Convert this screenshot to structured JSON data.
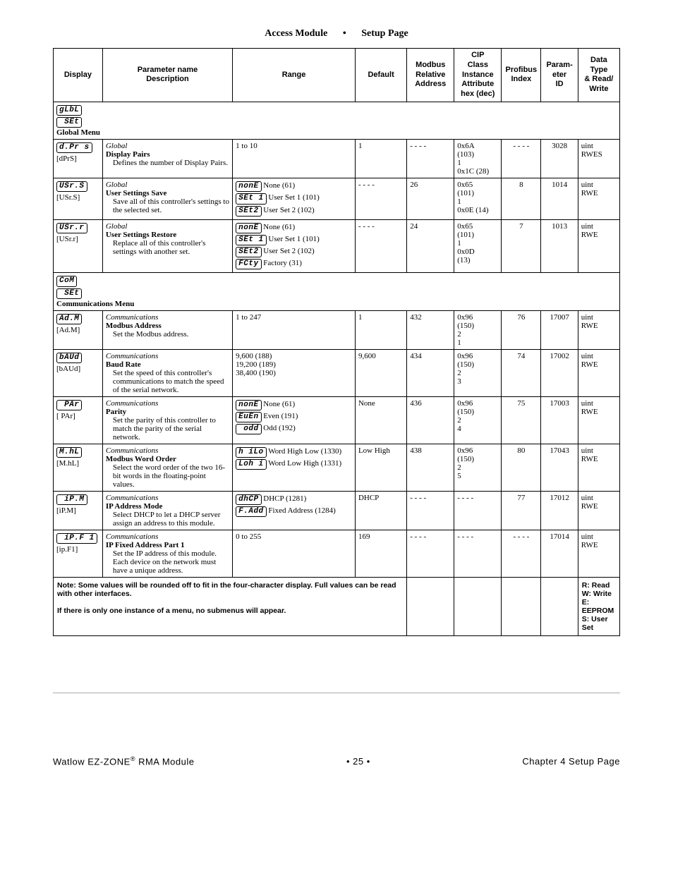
{
  "header": {
    "left": "Access Module",
    "right": "Setup Page"
  },
  "columns": {
    "display": "Display",
    "param": "Parameter name\nDescription",
    "range": "Range",
    "default": "Default",
    "modbus": "Modbus\nRelative\nAddress",
    "cip": "CIP\nClass\nInstance\nAttribute\nhex (dec)",
    "profibus": "Profibus\nIndex",
    "paramid": "Param-\neter\nID",
    "type": "Data\nType\n& Read/\nWrite"
  },
  "menus": {
    "global": {
      "seg1": "gLbL",
      "seg2": " SEt",
      "title": "Global Menu"
    },
    "comms": {
      "seg1": "CoM",
      "seg2": " SEt",
      "title": "Communications Menu"
    }
  },
  "rows": {
    "dprs": {
      "seg": "d.Pr s",
      "plain": "[dPrS]",
      "ctx": "Global",
      "name": "Display Pairs",
      "desc": "Defines the number of Display Pairs.",
      "range": "1 to 10",
      "default": "1",
      "modbus": "- - - -",
      "cip": "0x6A\n(103)\n1\n0x1C (28)",
      "profibus": "- - - -",
      "paramid": "3028",
      "type": "uint\nRWES"
    },
    "usrs": {
      "seg": "USr.S",
      "plain": "[USr.S]",
      "ctx": "Global",
      "name": "User Settings Save",
      "desc": "Save all of this controller's settings to the selected set.",
      "rangeOpts": [
        {
          "seg": "nonE",
          "txt": " None (61)"
        },
        {
          "seg": "SEt 1",
          "txt": " User Set 1 (101)"
        },
        {
          "seg": "SEt2",
          "txt": " User Set 2 (102)"
        }
      ],
      "default": "- - - -",
      "modbus": "26",
      "cip": "0x65\n(101)\n1\n0x0E (14)",
      "profibus": "8",
      "paramid": "1014",
      "type": "uint\nRWE"
    },
    "usrr": {
      "seg": "USr.r",
      "plain": "[USr.r]",
      "ctx": "Global",
      "name": "User Settings Restore",
      "desc": "Replace all of this controller's settings with another set.",
      "rangeOpts": [
        {
          "seg": "nonE",
          "txt": " None (61)"
        },
        {
          "seg": "SEt 1",
          "txt": " User Set 1 (101)"
        },
        {
          "seg": "SEt2",
          "txt": " User Set 2 (102)"
        },
        {
          "seg": "FCty",
          "txt": " Factory (31)"
        }
      ],
      "default": "- - - -",
      "modbus": "24",
      "cip": "0x65\n(101)\n1\n0x0D\n(13)",
      "profibus": "7",
      "paramid": "1013",
      "type": "uint\nRWE"
    },
    "adm": {
      "seg": "Ad.M",
      "plain": "[Ad.M]",
      "ctx": "Communications",
      "name": "Modbus Address",
      "desc": "Set the Modbus address.",
      "range": "1 to 247",
      "default": "1",
      "modbus": "432",
      "cip": "0x96\n(150)\n2\n1",
      "profibus": "76",
      "paramid": "17007",
      "type": "uint\nRWE"
    },
    "baud": {
      "seg": "bAUd",
      "plain": "[bAUd]",
      "ctx": "Communications",
      "name": "Baud Rate",
      "desc": "Set the speed of this controller's communications to match the speed of the serial network.",
      "range": "9,600 (188)\n19,200 (189)\n38,400 (190)",
      "default": "9,600",
      "modbus": "434",
      "cip": "0x96\n(150)\n2\n3",
      "profibus": "74",
      "paramid": "17002",
      "type": "uint\nRWE"
    },
    "par": {
      "seg": " PAr",
      "plain": "[ PAr]",
      "ctx": "Communications",
      "name": "Parity",
      "desc": "Set the parity of this controller to match the parity of the serial network.",
      "rangeOpts": [
        {
          "seg": "nonE",
          "txt": " None (61)"
        },
        {
          "seg": "EuEn",
          "txt": " Even (191)"
        },
        {
          "seg": " odd",
          "txt": " Odd (192)"
        }
      ],
      "default": "None",
      "modbus": "436",
      "cip": "0x96\n(150)\n2\n4",
      "profibus": "75",
      "paramid": "17003",
      "type": "uint\nRWE"
    },
    "mhl": {
      "seg": "M.hL",
      "plain": "[M.hL]",
      "ctx": "Communications",
      "name": "Modbus Word Order",
      "desc": "Select the word order of the two 16-bit words in the floating-point values.",
      "rangeOpts": [
        {
          "seg": "h iLo",
          "txt": " Word High Low (1330)"
        },
        {
          "seg": "Loh i",
          "txt": " Word Low High (1331)"
        }
      ],
      "default": "Low High",
      "modbus": "438",
      "cip": "0x96\n(150)\n2\n5",
      "profibus": "80",
      "paramid": "17043",
      "type": "uint\nRWE"
    },
    "ipm": {
      "seg": " iP.M",
      "plain": "[iP.M]",
      "ctx": "Communications",
      "name": "IP Address Mode",
      "desc": "Select DHCP to let a DHCP server assign an address to this module.",
      "rangeOpts": [
        {
          "seg": "dhCP",
          "txt": " DHCP (1281)"
        },
        {
          "seg": "F.Add",
          "txt": " Fixed Address (1284)"
        }
      ],
      "default": "DHCP",
      "modbus": "- - - -",
      "cip": "- - - -",
      "profibus": "77",
      "paramid": "17012",
      "type": "uint\nRWE"
    },
    "ipf1": {
      "seg": " iP.F 1",
      "plain": "[ip.F1]",
      "ctx": "Communications",
      "name": "IP Fixed Address Part 1",
      "desc": "Set the IP address of this module. Each device on the network must have a unique address.",
      "range": "0 to 255",
      "default": "169",
      "modbus": "- - - -",
      "cip": "- - - -",
      "profibus": "- - - -",
      "paramid": "17014",
      "type": "uint\nRWE"
    }
  },
  "footer_note": {
    "text1": "Note: Some values will be rounded off to fit in the four-character display. Full values can be read with other interfaces.",
    "text2": "If there is only one instance of a menu, no submenus will appear.",
    "legend": "R: Read\nW: Write\nE: EEPROM\nS: User Set"
  },
  "page_footer": {
    "left": "Watlow EZ-ZONE",
    "left_sup": "®",
    "left2": " RMA Module",
    "mid": "•  25  •",
    "right": "Chapter 4 Setup Page"
  }
}
